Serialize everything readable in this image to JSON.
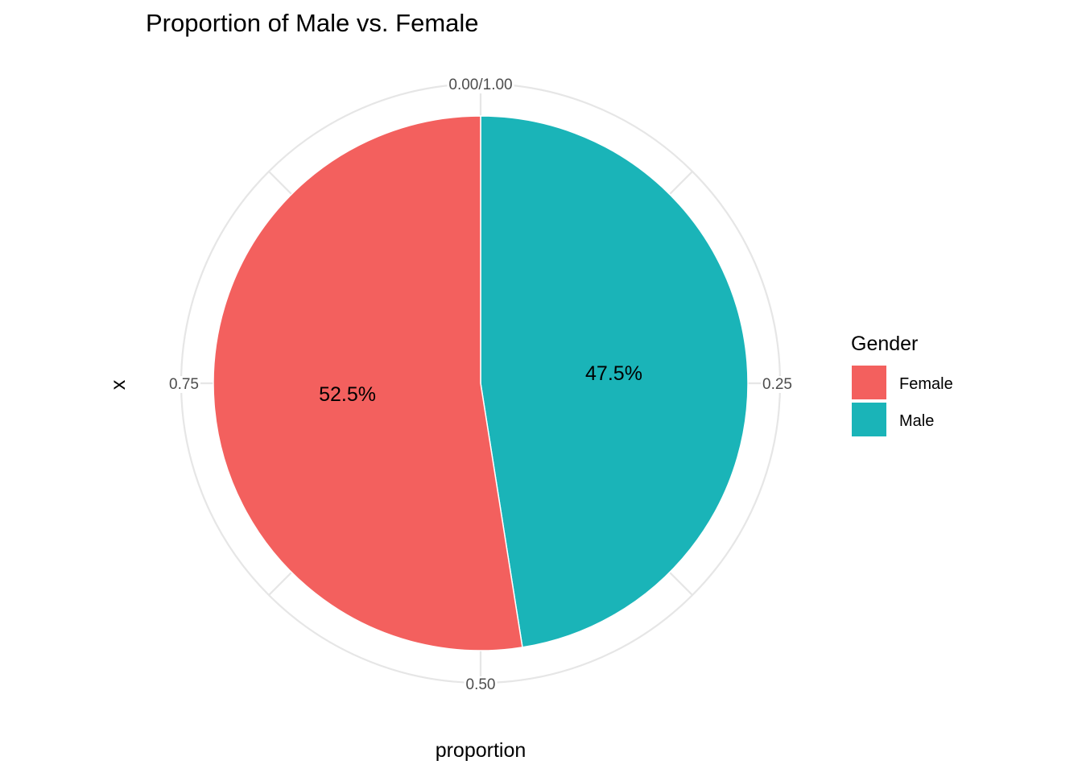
{
  "chart_data": {
    "type": "pie",
    "title": "Proportion of Male vs. Female",
    "xlabel": "proportion",
    "ylabel": "x",
    "categories": [
      "Female",
      "Male"
    ],
    "values": [
      0.525,
      0.475
    ],
    "labels": [
      "52.5%",
      "47.5%"
    ],
    "colors": [
      "#F3605E",
      "#1AB4B8"
    ],
    "theta_ticks": [
      {
        "value": 0.0,
        "label": "0.00/1.00"
      },
      {
        "value": 0.25,
        "label": "0.25"
      },
      {
        "value": 0.5,
        "label": "0.50"
      },
      {
        "value": 0.75,
        "label": "0.75"
      }
    ],
    "stack_order_clockwise": [
      "Male",
      "Female"
    ],
    "grid": true,
    "legend": {
      "title": "Gender",
      "placement": "right",
      "entries": [
        "Female",
        "Male"
      ]
    }
  }
}
